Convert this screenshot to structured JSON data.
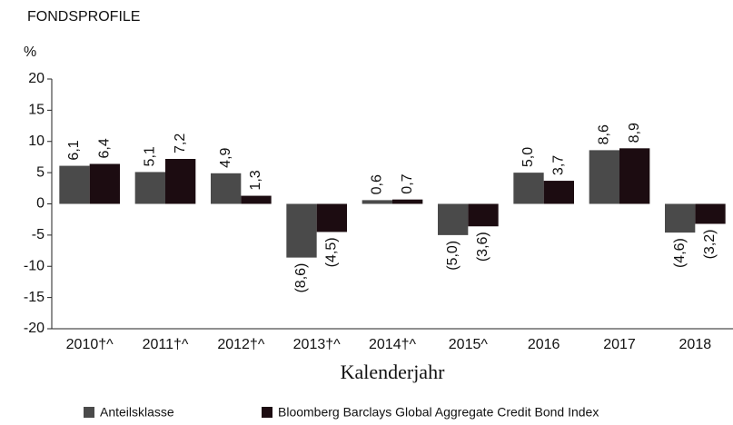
{
  "chart_data": {
    "type": "bar",
    "title": "FONDSPROFILE",
    "y_label": "%",
    "x_label": "Kalenderjahr",
    "categories": [
      "2010†^",
      "2011†^",
      "2012†^",
      "2013†^",
      "2014†^",
      "2015^",
      "2016",
      "2017",
      "2018"
    ],
    "series": [
      {
        "name": "Anteilsklasse",
        "color": "#4a4a4a",
        "values": [
          6.1,
          5.1,
          4.9,
          -8.6,
          0.6,
          -5.0,
          5.0,
          8.6,
          -4.6
        ],
        "value_labels": [
          "6,1",
          "5,1",
          "4,9",
          "(8,6)",
          "0,6",
          "(5,0)",
          "5,0",
          "8,6",
          "(4,6)"
        ]
      },
      {
        "name": "Bloomberg Barclays Global Aggregate Credit Bond Index",
        "color": "#1c0c11",
        "values": [
          6.4,
          7.2,
          1.3,
          -4.5,
          0.7,
          -3.6,
          3.7,
          8.9,
          -3.2
        ],
        "value_labels": [
          "6,4",
          "7,2",
          "1,3",
          "(4,5)",
          "0,7",
          "(3,6)",
          "3,7",
          "8,9",
          "(3,2)"
        ]
      }
    ],
    "ylim": [
      -20,
      20
    ],
    "yticks": [
      -20,
      -15,
      -10,
      -5,
      0,
      5,
      10,
      15,
      20
    ],
    "grid": false
  }
}
